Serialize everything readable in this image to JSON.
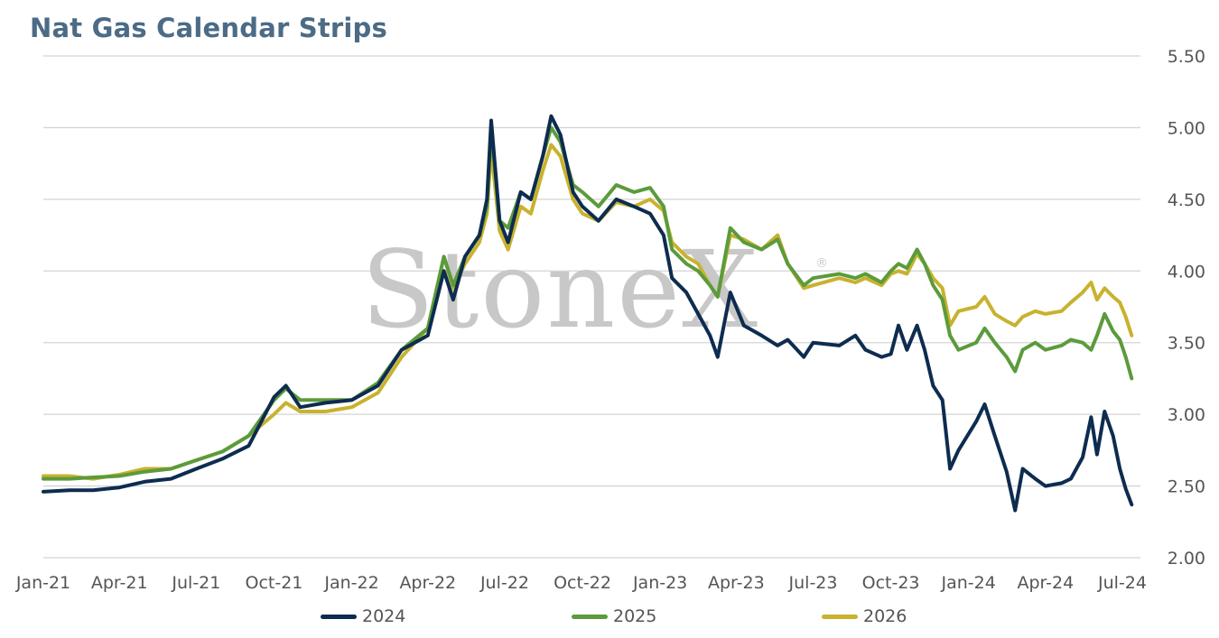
{
  "chart_data": {
    "type": "line",
    "title": "Nat Gas Calendar Strips",
    "watermark": "StoneX",
    "xlabel": "",
    "ylabel": "",
    "ylim": [
      2.0,
      5.5
    ],
    "yticks": [
      "5.50",
      "5.00",
      "4.50",
      "4.00",
      "3.50",
      "3.00",
      "2.50",
      "2.00"
    ],
    "ytick_values": [
      5.5,
      5.0,
      4.5,
      4.0,
      3.5,
      3.0,
      2.5,
      2.0
    ],
    "xlim": [
      "2021-01-01",
      "2024-07-01"
    ],
    "x_ticks": [
      {
        "label": "Jan-21",
        "date": "2021-01-01"
      },
      {
        "label": "Apr-21",
        "date": "2021-04-01"
      },
      {
        "label": "Jul-21",
        "date": "2021-07-01"
      },
      {
        "label": "Oct-21",
        "date": "2021-10-01"
      },
      {
        "label": "Jan-22",
        "date": "2022-01-01"
      },
      {
        "label": "Apr-22",
        "date": "2022-04-01"
      },
      {
        "label": "Jul-22",
        "date": "2022-07-01"
      },
      {
        "label": "Oct-22",
        "date": "2022-10-01"
      },
      {
        "label": "Jan-23",
        "date": "2023-01-01"
      },
      {
        "label": "Apr-23",
        "date": "2023-04-01"
      },
      {
        "label": "Jul-23",
        "date": "2023-07-01"
      },
      {
        "label": "Oct-23",
        "date": "2023-10-01"
      },
      {
        "label": "Jan-24",
        "date": "2024-01-01"
      },
      {
        "label": "Apr-24",
        "date": "2024-04-01"
      },
      {
        "label": "Jul-24",
        "date": "2024-07-01"
      }
    ],
    "grid": true,
    "y_axis_side": "right",
    "legend_position": "bottom",
    "series": [
      {
        "name": "2024",
        "color": "#0d2c4f",
        "points": [
          [
            "2021-01-01",
            2.46
          ],
          [
            "2021-02-01",
            2.47
          ],
          [
            "2021-03-01",
            2.47
          ],
          [
            "2021-04-01",
            2.49
          ],
          [
            "2021-05-01",
            2.53
          ],
          [
            "2021-06-01",
            2.55
          ],
          [
            "2021-07-01",
            2.62
          ],
          [
            "2021-08-01",
            2.69
          ],
          [
            "2021-09-01",
            2.78
          ],
          [
            "2021-10-01",
            3.12
          ],
          [
            "2021-10-15",
            3.2
          ],
          [
            "2021-11-01",
            3.05
          ],
          [
            "2021-12-01",
            3.08
          ],
          [
            "2022-01-01",
            3.1
          ],
          [
            "2022-02-01",
            3.2
          ],
          [
            "2022-03-01",
            3.45
          ],
          [
            "2022-04-01",
            3.55
          ],
          [
            "2022-04-20",
            4.0
          ],
          [
            "2022-05-01",
            3.8
          ],
          [
            "2022-05-15",
            4.1
          ],
          [
            "2022-06-01",
            4.25
          ],
          [
            "2022-06-10",
            4.5
          ],
          [
            "2022-06-15",
            5.05
          ],
          [
            "2022-06-25",
            4.35
          ],
          [
            "2022-07-05",
            4.2
          ],
          [
            "2022-07-20",
            4.55
          ],
          [
            "2022-08-01",
            4.5
          ],
          [
            "2022-08-15",
            4.8
          ],
          [
            "2022-08-25",
            5.08
          ],
          [
            "2022-09-05",
            4.95
          ],
          [
            "2022-09-20",
            4.55
          ],
          [
            "2022-10-01",
            4.45
          ],
          [
            "2022-10-20",
            4.35
          ],
          [
            "2022-11-10",
            4.5
          ],
          [
            "2022-12-01",
            4.45
          ],
          [
            "2022-12-20",
            4.4
          ],
          [
            "2023-01-05",
            4.25
          ],
          [
            "2023-01-15",
            3.95
          ],
          [
            "2023-02-01",
            3.85
          ],
          [
            "2023-02-15",
            3.7
          ],
          [
            "2023-03-01",
            3.55
          ],
          [
            "2023-03-10",
            3.4
          ],
          [
            "2023-03-25",
            3.85
          ],
          [
            "2023-04-10",
            3.62
          ],
          [
            "2023-05-01",
            3.55
          ],
          [
            "2023-05-20",
            3.48
          ],
          [
            "2023-06-01",
            3.52
          ],
          [
            "2023-06-20",
            3.4
          ],
          [
            "2023-07-01",
            3.5
          ],
          [
            "2023-08-01",
            3.48
          ],
          [
            "2023-08-20",
            3.55
          ],
          [
            "2023-09-01",
            3.45
          ],
          [
            "2023-09-20",
            3.4
          ],
          [
            "2023-10-01",
            3.42
          ],
          [
            "2023-10-10",
            3.62
          ],
          [
            "2023-10-20",
            3.45
          ],
          [
            "2023-11-01",
            3.62
          ],
          [
            "2023-11-10",
            3.45
          ],
          [
            "2023-11-20",
            3.2
          ],
          [
            "2023-12-01",
            3.1
          ],
          [
            "2023-12-10",
            2.62
          ],
          [
            "2023-12-20",
            2.75
          ],
          [
            "2024-01-10",
            2.95
          ],
          [
            "2024-01-20",
            3.07
          ],
          [
            "2024-02-01",
            2.85
          ],
          [
            "2024-02-15",
            2.6
          ],
          [
            "2024-02-25",
            2.33
          ],
          [
            "2024-03-05",
            2.62
          ],
          [
            "2024-03-20",
            2.55
          ],
          [
            "2024-04-01",
            2.5
          ],
          [
            "2024-04-20",
            2.52
          ],
          [
            "2024-05-01",
            2.55
          ],
          [
            "2024-05-15",
            2.7
          ],
          [
            "2024-05-25",
            2.98
          ],
          [
            "2024-06-01",
            2.72
          ],
          [
            "2024-06-10",
            3.02
          ],
          [
            "2024-06-20",
            2.85
          ],
          [
            "2024-06-28",
            2.62
          ],
          [
            "2024-07-05",
            2.48
          ],
          [
            "2024-07-12",
            2.37
          ]
        ]
      },
      {
        "name": "2025",
        "color": "#5b9b3c",
        "points": [
          [
            "2021-01-01",
            2.55
          ],
          [
            "2021-02-01",
            2.55
          ],
          [
            "2021-03-01",
            2.56
          ],
          [
            "2021-04-01",
            2.57
          ],
          [
            "2021-05-01",
            2.6
          ],
          [
            "2021-06-01",
            2.62
          ],
          [
            "2021-07-01",
            2.68
          ],
          [
            "2021-08-01",
            2.74
          ],
          [
            "2021-09-01",
            2.85
          ],
          [
            "2021-10-01",
            3.1
          ],
          [
            "2021-10-15",
            3.18
          ],
          [
            "2021-11-01",
            3.1
          ],
          [
            "2021-12-01",
            3.1
          ],
          [
            "2022-01-01",
            3.1
          ],
          [
            "2022-02-01",
            3.22
          ],
          [
            "2022-03-01",
            3.45
          ],
          [
            "2022-04-01",
            3.6
          ],
          [
            "2022-04-20",
            4.1
          ],
          [
            "2022-05-01",
            3.9
          ],
          [
            "2022-05-15",
            4.1
          ],
          [
            "2022-06-01",
            4.25
          ],
          [
            "2022-06-10",
            4.45
          ],
          [
            "2022-06-15",
            4.98
          ],
          [
            "2022-06-25",
            4.35
          ],
          [
            "2022-07-05",
            4.3
          ],
          [
            "2022-07-20",
            4.55
          ],
          [
            "2022-08-01",
            4.5
          ],
          [
            "2022-08-15",
            4.8
          ],
          [
            "2022-08-25",
            5.0
          ],
          [
            "2022-09-05",
            4.9
          ],
          [
            "2022-09-20",
            4.6
          ],
          [
            "2022-10-01",
            4.55
          ],
          [
            "2022-10-20",
            4.45
          ],
          [
            "2022-11-10",
            4.6
          ],
          [
            "2022-12-01",
            4.55
          ],
          [
            "2022-12-20",
            4.58
          ],
          [
            "2023-01-05",
            4.45
          ],
          [
            "2023-01-15",
            4.15
          ],
          [
            "2023-02-01",
            4.05
          ],
          [
            "2023-02-15",
            4.0
          ],
          [
            "2023-03-01",
            3.9
          ],
          [
            "2023-03-10",
            3.82
          ],
          [
            "2023-03-25",
            4.3
          ],
          [
            "2023-04-10",
            4.2
          ],
          [
            "2023-05-01",
            4.15
          ],
          [
            "2023-05-20",
            4.22
          ],
          [
            "2023-06-01",
            4.05
          ],
          [
            "2023-06-20",
            3.9
          ],
          [
            "2023-07-01",
            3.95
          ],
          [
            "2023-08-01",
            3.98
          ],
          [
            "2023-08-20",
            3.95
          ],
          [
            "2023-09-01",
            3.98
          ],
          [
            "2023-09-20",
            3.92
          ],
          [
            "2023-10-01",
            4.0
          ],
          [
            "2023-10-10",
            4.05
          ],
          [
            "2023-10-20",
            4.02
          ],
          [
            "2023-11-01",
            4.15
          ],
          [
            "2023-11-10",
            4.05
          ],
          [
            "2023-11-20",
            3.9
          ],
          [
            "2023-12-01",
            3.8
          ],
          [
            "2023-12-10",
            3.55
          ],
          [
            "2023-12-20",
            3.45
          ],
          [
            "2024-01-10",
            3.5
          ],
          [
            "2024-01-20",
            3.6
          ],
          [
            "2024-02-01",
            3.5
          ],
          [
            "2024-02-15",
            3.4
          ],
          [
            "2024-02-25",
            3.3
          ],
          [
            "2024-03-05",
            3.45
          ],
          [
            "2024-03-20",
            3.5
          ],
          [
            "2024-04-01",
            3.45
          ],
          [
            "2024-04-20",
            3.48
          ],
          [
            "2024-05-01",
            3.52
          ],
          [
            "2024-05-15",
            3.5
          ],
          [
            "2024-05-25",
            3.45
          ],
          [
            "2024-06-01",
            3.55
          ],
          [
            "2024-06-10",
            3.7
          ],
          [
            "2024-06-20",
            3.58
          ],
          [
            "2024-06-28",
            3.52
          ],
          [
            "2024-07-05",
            3.4
          ],
          [
            "2024-07-12",
            3.25
          ]
        ]
      },
      {
        "name": "2026",
        "color": "#c8b22e",
        "points": [
          [
            "2021-01-01",
            2.57
          ],
          [
            "2021-02-01",
            2.57
          ],
          [
            "2021-03-01",
            2.55
          ],
          [
            "2021-04-01",
            2.58
          ],
          [
            "2021-05-01",
            2.62
          ],
          [
            "2021-06-01",
            2.62
          ],
          [
            "2021-07-01",
            2.68
          ],
          [
            "2021-08-01",
            2.74
          ],
          [
            "2021-09-01",
            2.85
          ],
          [
            "2021-10-01",
            3.0
          ],
          [
            "2021-10-15",
            3.08
          ],
          [
            "2021-11-01",
            3.02
          ],
          [
            "2021-12-01",
            3.02
          ],
          [
            "2022-01-01",
            3.05
          ],
          [
            "2022-02-01",
            3.15
          ],
          [
            "2022-03-01",
            3.4
          ],
          [
            "2022-04-01",
            3.6
          ],
          [
            "2022-04-20",
            4.1
          ],
          [
            "2022-05-01",
            3.88
          ],
          [
            "2022-05-15",
            4.05
          ],
          [
            "2022-06-01",
            4.2
          ],
          [
            "2022-06-10",
            4.4
          ],
          [
            "2022-06-15",
            4.85
          ],
          [
            "2022-06-25",
            4.28
          ],
          [
            "2022-07-05",
            4.15
          ],
          [
            "2022-07-20",
            4.45
          ],
          [
            "2022-08-01",
            4.4
          ],
          [
            "2022-08-15",
            4.7
          ],
          [
            "2022-08-25",
            4.88
          ],
          [
            "2022-09-05",
            4.8
          ],
          [
            "2022-09-20",
            4.5
          ],
          [
            "2022-10-01",
            4.4
          ],
          [
            "2022-10-20",
            4.35
          ],
          [
            "2022-11-10",
            4.48
          ],
          [
            "2022-12-01",
            4.45
          ],
          [
            "2022-12-20",
            4.5
          ],
          [
            "2023-01-05",
            4.42
          ],
          [
            "2023-01-15",
            4.2
          ],
          [
            "2023-02-01",
            4.1
          ],
          [
            "2023-02-15",
            4.05
          ],
          [
            "2023-03-01",
            3.9
          ],
          [
            "2023-03-10",
            3.82
          ],
          [
            "2023-03-25",
            4.25
          ],
          [
            "2023-04-10",
            4.22
          ],
          [
            "2023-05-01",
            4.15
          ],
          [
            "2023-05-20",
            4.25
          ],
          [
            "2023-06-01",
            4.05
          ],
          [
            "2023-06-20",
            3.88
          ],
          [
            "2023-07-01",
            3.9
          ],
          [
            "2023-08-01",
            3.95
          ],
          [
            "2023-08-20",
            3.92
          ],
          [
            "2023-09-01",
            3.95
          ],
          [
            "2023-09-20",
            3.9
          ],
          [
            "2023-10-01",
            3.98
          ],
          [
            "2023-10-10",
            4.0
          ],
          [
            "2023-10-20",
            3.98
          ],
          [
            "2023-11-01",
            4.12
          ],
          [
            "2023-11-10",
            4.05
          ],
          [
            "2023-11-20",
            3.95
          ],
          [
            "2023-12-01",
            3.88
          ],
          [
            "2023-12-10",
            3.62
          ],
          [
            "2023-12-20",
            3.72
          ],
          [
            "2024-01-10",
            3.75
          ],
          [
            "2024-01-20",
            3.82
          ],
          [
            "2024-02-01",
            3.7
          ],
          [
            "2024-02-15",
            3.65
          ],
          [
            "2024-02-25",
            3.62
          ],
          [
            "2024-03-05",
            3.68
          ],
          [
            "2024-03-20",
            3.72
          ],
          [
            "2024-04-01",
            3.7
          ],
          [
            "2024-04-20",
            3.72
          ],
          [
            "2024-05-01",
            3.78
          ],
          [
            "2024-05-15",
            3.85
          ],
          [
            "2024-05-25",
            3.92
          ],
          [
            "2024-06-01",
            3.8
          ],
          [
            "2024-06-10",
            3.88
          ],
          [
            "2024-06-20",
            3.82
          ],
          [
            "2024-06-28",
            3.78
          ],
          [
            "2024-07-05",
            3.68
          ],
          [
            "2024-07-12",
            3.55
          ]
        ]
      }
    ]
  }
}
